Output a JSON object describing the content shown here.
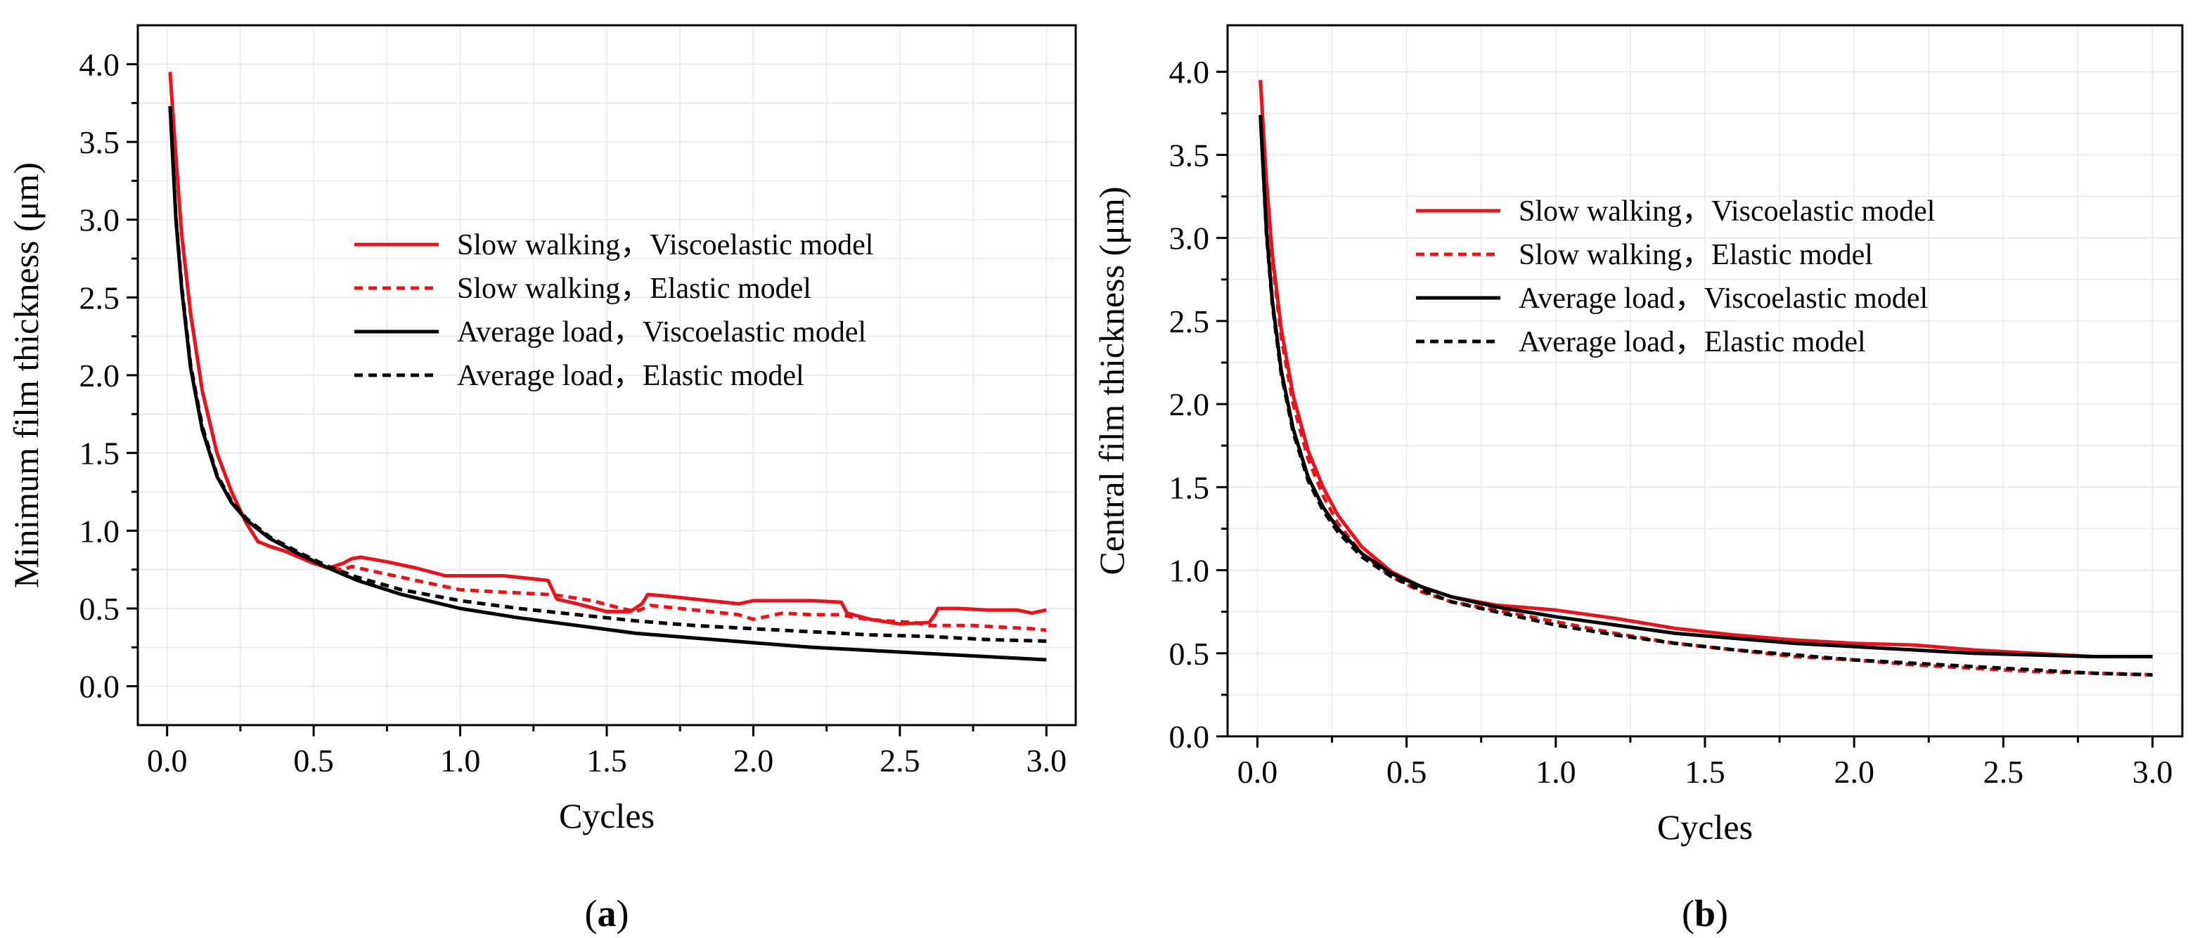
{
  "chart_data": [
    {
      "type": "line",
      "panel_label": "a",
      "xlabel": "Cycles",
      "ylabel": "Minimum film thickness (μm)",
      "xlim": [
        -0.1,
        3.1
      ],
      "ylim": [
        -0.25,
        4.25
      ],
      "xticks": [
        0.0,
        0.5,
        1.0,
        1.5,
        2.0,
        2.5,
        3.0
      ],
      "xtick_labels": [
        "0.0",
        "0.5",
        "1.0",
        "1.5",
        "2.0",
        "2.5",
        "3.0"
      ],
      "yticks": [
        0.0,
        0.5,
        1.0,
        1.5,
        2.0,
        2.5,
        3.0,
        3.5,
        4.0
      ],
      "ytick_labels": [
        "0.0",
        "0.5",
        "1.0",
        "1.5",
        "2.0",
        "2.5",
        "3.0",
        "3.5",
        "4.0"
      ],
      "grid": true,
      "legend_position": "center",
      "series": [
        {
          "name": "Slow walking，Viscoelastic model",
          "color": "#e8141b",
          "dash": "solid",
          "x": [
            0.01,
            0.03,
            0.05,
            0.08,
            0.12,
            0.17,
            0.22,
            0.27,
            0.31,
            0.35,
            0.4,
            0.45,
            0.5,
            0.55,
            0.6,
            0.63,
            0.66,
            0.75,
            0.85,
            0.95,
            1.05,
            1.15,
            1.25,
            1.3,
            1.33,
            1.4,
            1.5,
            1.58,
            1.62,
            1.64,
            1.7,
            1.8,
            1.9,
            1.95,
            2.0,
            2.1,
            2.2,
            2.3,
            2.32,
            2.4,
            2.5,
            2.6,
            2.62,
            2.63,
            2.7,
            2.8,
            2.9,
            2.95,
            3.0
          ],
          "y": [
            3.95,
            3.4,
            2.9,
            2.4,
            1.9,
            1.5,
            1.25,
            1.05,
            0.93,
            0.9,
            0.87,
            0.83,
            0.79,
            0.76,
            0.79,
            0.82,
            0.83,
            0.8,
            0.76,
            0.71,
            0.71,
            0.71,
            0.69,
            0.68,
            0.56,
            0.53,
            0.48,
            0.48,
            0.53,
            0.59,
            0.58,
            0.56,
            0.54,
            0.53,
            0.55,
            0.55,
            0.55,
            0.54,
            0.47,
            0.43,
            0.4,
            0.41,
            0.46,
            0.5,
            0.5,
            0.49,
            0.49,
            0.47,
            0.49
          ]
        },
        {
          "name": "Slow walking，Elastic model",
          "color": "#e8141b",
          "dash": "dashed",
          "x": [
            0.01,
            0.03,
            0.05,
            0.08,
            0.12,
            0.17,
            0.22,
            0.27,
            0.31,
            0.35,
            0.4,
            0.45,
            0.5,
            0.55,
            0.6,
            0.63,
            0.7,
            0.8,
            0.9,
            1.0,
            1.1,
            1.2,
            1.3,
            1.35,
            1.45,
            1.55,
            1.6,
            1.65,
            1.75,
            1.85,
            1.95,
            2.0,
            2.1,
            2.2,
            2.3,
            2.35,
            2.45,
            2.55,
            2.6,
            2.65,
            2.75,
            2.85,
            2.95,
            3.0
          ],
          "y": [
            3.95,
            3.4,
            2.9,
            2.4,
            1.9,
            1.5,
            1.25,
            1.05,
            0.93,
            0.9,
            0.87,
            0.83,
            0.79,
            0.76,
            0.75,
            0.77,
            0.74,
            0.7,
            0.66,
            0.62,
            0.61,
            0.6,
            0.59,
            0.58,
            0.55,
            0.5,
            0.48,
            0.52,
            0.5,
            0.48,
            0.46,
            0.43,
            0.47,
            0.46,
            0.46,
            0.44,
            0.42,
            0.41,
            0.39,
            0.39,
            0.39,
            0.38,
            0.37,
            0.36
          ]
        },
        {
          "name": "Average load，Viscoelastic model",
          "color": "#000000",
          "dash": "solid",
          "x": [
            0.01,
            0.03,
            0.05,
            0.08,
            0.12,
            0.17,
            0.22,
            0.27,
            0.35,
            0.45,
            0.55,
            0.65,
            0.8,
            1.0,
            1.2,
            1.4,
            1.6,
            1.8,
            2.0,
            2.2,
            2.4,
            2.6,
            2.8,
            3.0
          ],
          "y": [
            3.73,
            3.0,
            2.55,
            2.05,
            1.65,
            1.35,
            1.18,
            1.07,
            0.95,
            0.85,
            0.76,
            0.68,
            0.59,
            0.5,
            0.44,
            0.39,
            0.34,
            0.31,
            0.28,
            0.25,
            0.23,
            0.21,
            0.19,
            0.17
          ]
        },
        {
          "name": "Average load，Elastic model",
          "color": "#000000",
          "dash": "dashed",
          "x": [
            0.01,
            0.03,
            0.05,
            0.08,
            0.12,
            0.17,
            0.22,
            0.27,
            0.35,
            0.45,
            0.55,
            0.65,
            0.8,
            1.0,
            1.2,
            1.4,
            1.6,
            1.8,
            2.0,
            2.2,
            2.4,
            2.6,
            2.8,
            3.0
          ],
          "y": [
            3.73,
            3.02,
            2.57,
            2.07,
            1.67,
            1.36,
            1.19,
            1.08,
            0.96,
            0.86,
            0.77,
            0.7,
            0.62,
            0.55,
            0.5,
            0.46,
            0.42,
            0.39,
            0.37,
            0.35,
            0.33,
            0.32,
            0.3,
            0.29
          ]
        }
      ]
    },
    {
      "type": "line",
      "panel_label": "b",
      "xlabel": "Cycles",
      "ylabel": "Central film thickness (μm)",
      "xlim": [
        -0.1,
        3.1
      ],
      "ylim": [
        0.0,
        4.28
      ],
      "xticks": [
        0.0,
        0.5,
        1.0,
        1.5,
        2.0,
        2.5,
        3.0
      ],
      "xtick_labels": [
        "0.0",
        "0.5",
        "1.0",
        "1.5",
        "2.0",
        "2.5",
        "3.0"
      ],
      "yticks": [
        0.0,
        0.5,
        1.0,
        1.5,
        2.0,
        2.5,
        3.0,
        3.5,
        4.0
      ],
      "ytick_labels": [
        "0.0",
        "0.5",
        "1.0",
        "1.5",
        "2.0",
        "2.5",
        "3.0",
        "3.5",
        "4.0"
      ],
      "grid": true,
      "legend_position": "upper-center",
      "series": [
        {
          "name": "Slow walking，Viscoelastic model",
          "color": "#e8141b",
          "dash": "solid",
          "x": [
            0.01,
            0.03,
            0.05,
            0.08,
            0.12,
            0.17,
            0.22,
            0.27,
            0.35,
            0.45,
            0.55,
            0.65,
            0.8,
            1.0,
            1.2,
            1.4,
            1.6,
            1.8,
            2.0,
            2.2,
            2.4,
            2.6,
            2.8,
            3.0
          ],
          "y": [
            3.95,
            3.35,
            2.9,
            2.45,
            2.05,
            1.72,
            1.5,
            1.33,
            1.14,
            0.99,
            0.9,
            0.84,
            0.79,
            0.76,
            0.71,
            0.65,
            0.61,
            0.58,
            0.56,
            0.55,
            0.52,
            0.5,
            0.48,
            0.48
          ]
        },
        {
          "name": "Slow walking，Elastic model",
          "color": "#e8141b",
          "dash": "dashed",
          "x": [
            0.01,
            0.03,
            0.05,
            0.08,
            0.12,
            0.17,
            0.22,
            0.27,
            0.35,
            0.45,
            0.55,
            0.65,
            0.8,
            1.0,
            1.2,
            1.4,
            1.6,
            1.8,
            2.0,
            2.2,
            2.4,
            2.6,
            2.8,
            3.0
          ],
          "y": [
            3.95,
            3.33,
            2.87,
            2.4,
            2.0,
            1.67,
            1.45,
            1.28,
            1.1,
            0.96,
            0.87,
            0.81,
            0.76,
            0.69,
            0.62,
            0.56,
            0.52,
            0.48,
            0.46,
            0.43,
            0.41,
            0.39,
            0.38,
            0.37
          ]
        },
        {
          "name": "Average load，Viscoelastic model",
          "color": "#000000",
          "dash": "solid",
          "x": [
            0.01,
            0.03,
            0.05,
            0.08,
            0.12,
            0.17,
            0.22,
            0.27,
            0.35,
            0.45,
            0.55,
            0.65,
            0.8,
            1.0,
            1.2,
            1.4,
            1.6,
            1.8,
            2.0,
            2.2,
            2.4,
            2.6,
            2.8,
            3.0
          ],
          "y": [
            3.74,
            3.05,
            2.62,
            2.2,
            1.85,
            1.56,
            1.38,
            1.25,
            1.1,
            0.98,
            0.9,
            0.84,
            0.78,
            0.72,
            0.67,
            0.62,
            0.59,
            0.56,
            0.54,
            0.52,
            0.5,
            0.49,
            0.48,
            0.48
          ]
        },
        {
          "name": "Average load，Elastic model",
          "color": "#000000",
          "dash": "dashed",
          "x": [
            0.01,
            0.03,
            0.05,
            0.08,
            0.12,
            0.17,
            0.22,
            0.27,
            0.35,
            0.45,
            0.55,
            0.65,
            0.8,
            1.0,
            1.2,
            1.4,
            1.6,
            1.8,
            2.0,
            2.2,
            2.4,
            2.6,
            2.8,
            3.0
          ],
          "y": [
            3.74,
            3.03,
            2.6,
            2.18,
            1.83,
            1.54,
            1.36,
            1.23,
            1.08,
            0.96,
            0.88,
            0.81,
            0.75,
            0.67,
            0.61,
            0.56,
            0.52,
            0.49,
            0.46,
            0.44,
            0.42,
            0.4,
            0.38,
            0.37
          ]
        }
      ]
    }
  ]
}
